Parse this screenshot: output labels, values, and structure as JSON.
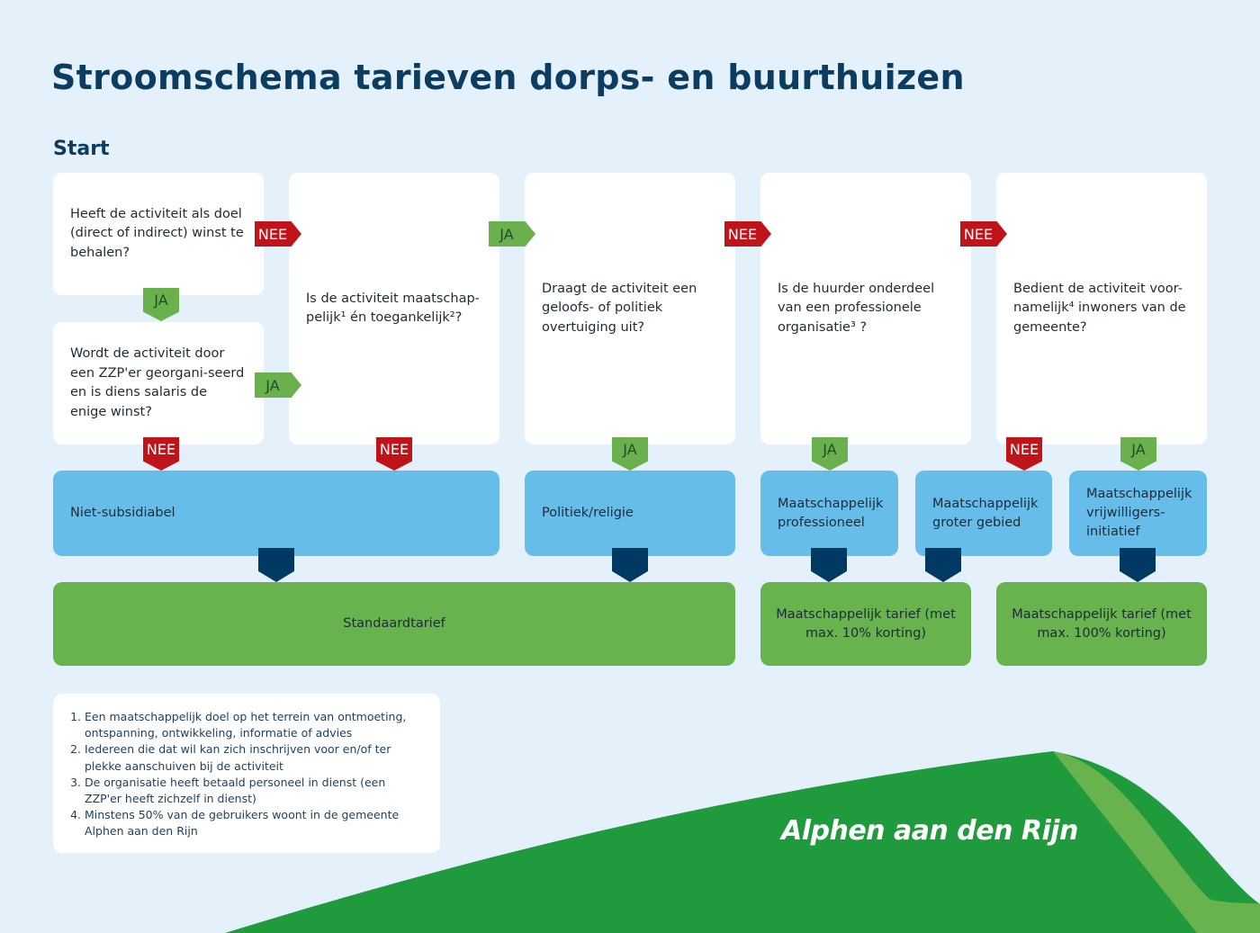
{
  "title": "Stroomschema tarieven dorps- en buurthuizen",
  "start": "Start",
  "questions": {
    "q1": "Heeft de activiteit als doel (direct of indirect) winst te behalen?",
    "q2": "Wordt de activiteit door een ZZP'er georgani-seerd en is diens salaris de enige winst?",
    "q3": "Is de activiteit maatschap-pelijk¹ én toegankelijk²?",
    "q4": "Draagt de activiteit een geloofs- of politiek overtuiging uit?",
    "q5": "Is de huurder onderdeel van een professionele organisatie³ ?",
    "q6": "Bedient de activiteit voor-namelijk⁴ inwoners van de gemeente?"
  },
  "labels": {
    "ja": "JA",
    "nee": "NEE"
  },
  "categories": [
    "Niet-subsidiabel",
    "Politiek/religie",
    "Maatschappelijk professioneel",
    "Maatschappelijk groter gebied",
    "Maatschappelijk vrijwilligers-initiatief"
  ],
  "tariffs": [
    "Standaardtarief",
    "Maatschappelijk tarief (met max. 10% korting)",
    "Maatschappelijk tarief (met max. 100% korting)"
  ],
  "footnotes": [
    "Een maatschappelijk doel op het terrein van ontmoeting, ontspanning, ontwikkeling, informatie of advies",
    "Iedereen die dat wil kan zich inschrijven voor en/of ter plekke aanschuiven bij de activiteit",
    "De organisatie heeft betaald personeel in dienst (een ZZP'er heeft zichzelf in dienst)",
    "Minstens 50% van de gebruikers woont in de gemeente Alphen aan den Rijn"
  ],
  "logo": "Alphen aan den Rijn",
  "colors": {
    "background": "#e4f1fb",
    "title": "#0d3c61",
    "ja": "#6ab04c",
    "nee": "#c0141b",
    "category": "#66bdea",
    "tariff": "#68b34e",
    "connector": "#003a63",
    "wave_dark": "#1f9a3c",
    "wave_light": "#68b34e"
  }
}
